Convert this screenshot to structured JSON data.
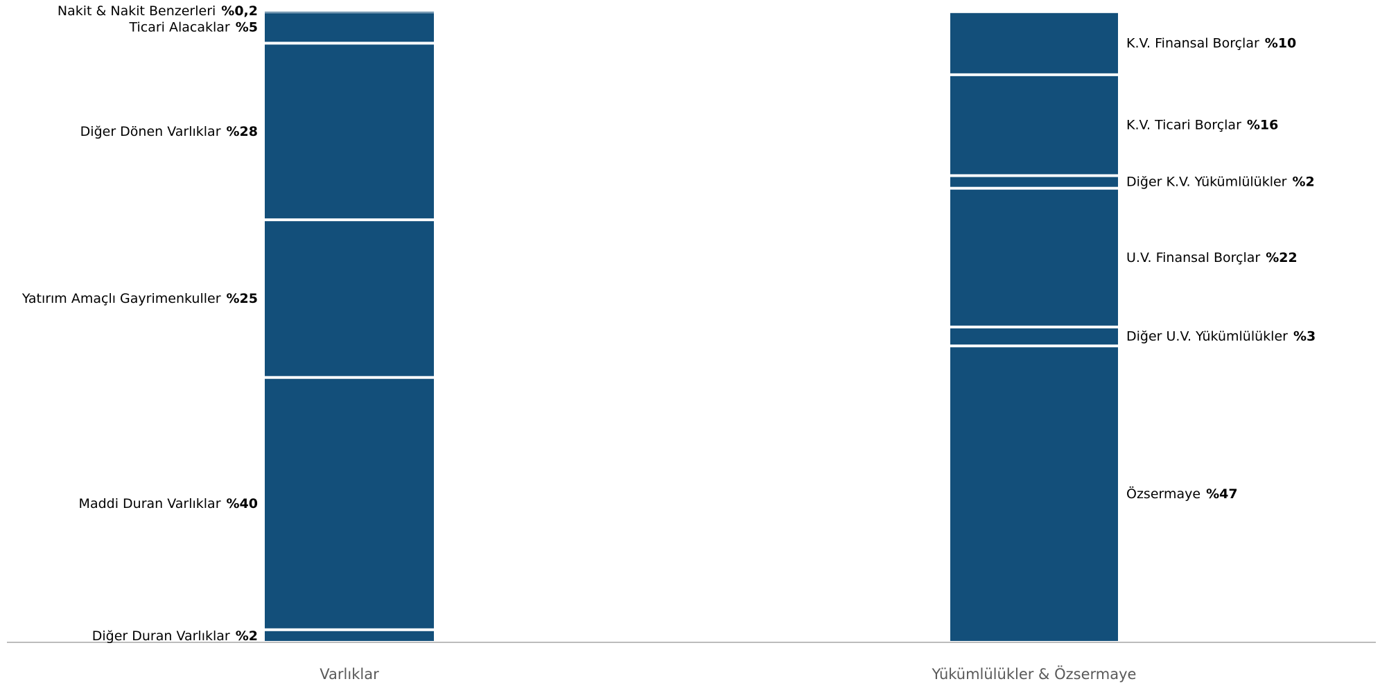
{
  "chart_data": {
    "type": "stacked_bar",
    "categories": [
      "Varlıklar",
      "Yükümlülükler & Özsermaye"
    ],
    "series": [
      {
        "name": "Diğer Duran Varlıklar",
        "color": "#134f7a",
        "values": [
          2,
          null
        ],
        "value_labels": [
          "%2",
          null
        ]
      },
      {
        "name": "Maddi Duran Varlıklar",
        "color": "#134f7a",
        "values": [
          40,
          null
        ],
        "value_labels": [
          "%40",
          null
        ]
      },
      {
        "name": "Yatırım Amaçlı Gayrimenkuller",
        "color": "#134f7a",
        "values": [
          25,
          null
        ],
        "value_labels": [
          "%25",
          null
        ]
      },
      {
        "name": "Diğer Dönen Varlıklar",
        "color": "#134f7a",
        "values": [
          28,
          null
        ],
        "value_labels": [
          "%28",
          null
        ]
      },
      {
        "name": "Ticari Alacaklar",
        "color": "#134f7a",
        "values": [
          5,
          null
        ],
        "value_labels": [
          "%5",
          null
        ]
      },
      {
        "name": "Nakit & Nakit Benzerleri",
        "color": "#134f7a",
        "values": [
          0.2,
          null
        ],
        "value_labels": [
          "%0,2",
          null
        ]
      },
      {
        "name": "Özsermaye",
        "color": "#134f7a",
        "values": [
          null,
          47
        ],
        "value_labels": [
          null,
          "%47"
        ]
      },
      {
        "name": "Diğer U.V. Yükümlülükler",
        "color": "#134f7a",
        "values": [
          null,
          3
        ],
        "value_labels": [
          null,
          "%3"
        ]
      },
      {
        "name": "U.V. Finansal Borçlar",
        "color": "#134f7a",
        "values": [
          null,
          22
        ],
        "value_labels": [
          null,
          "%22"
        ]
      },
      {
        "name": "Diğer K.V. Yükümlülükler",
        "color": "#134f7a",
        "values": [
          null,
          2
        ],
        "value_labels": [
          null,
          "%2"
        ]
      },
      {
        "name": "K.V. Ticari Borçlar",
        "color": "#134f7a",
        "values": [
          null,
          16
        ],
        "value_labels": [
          null,
          "%16"
        ]
      },
      {
        "name": "K.V. Finansal Borçlar",
        "color": "#134f7a",
        "values": [
          null,
          10
        ],
        "value_labels": [
          null,
          "%10"
        ]
      }
    ]
  }
}
